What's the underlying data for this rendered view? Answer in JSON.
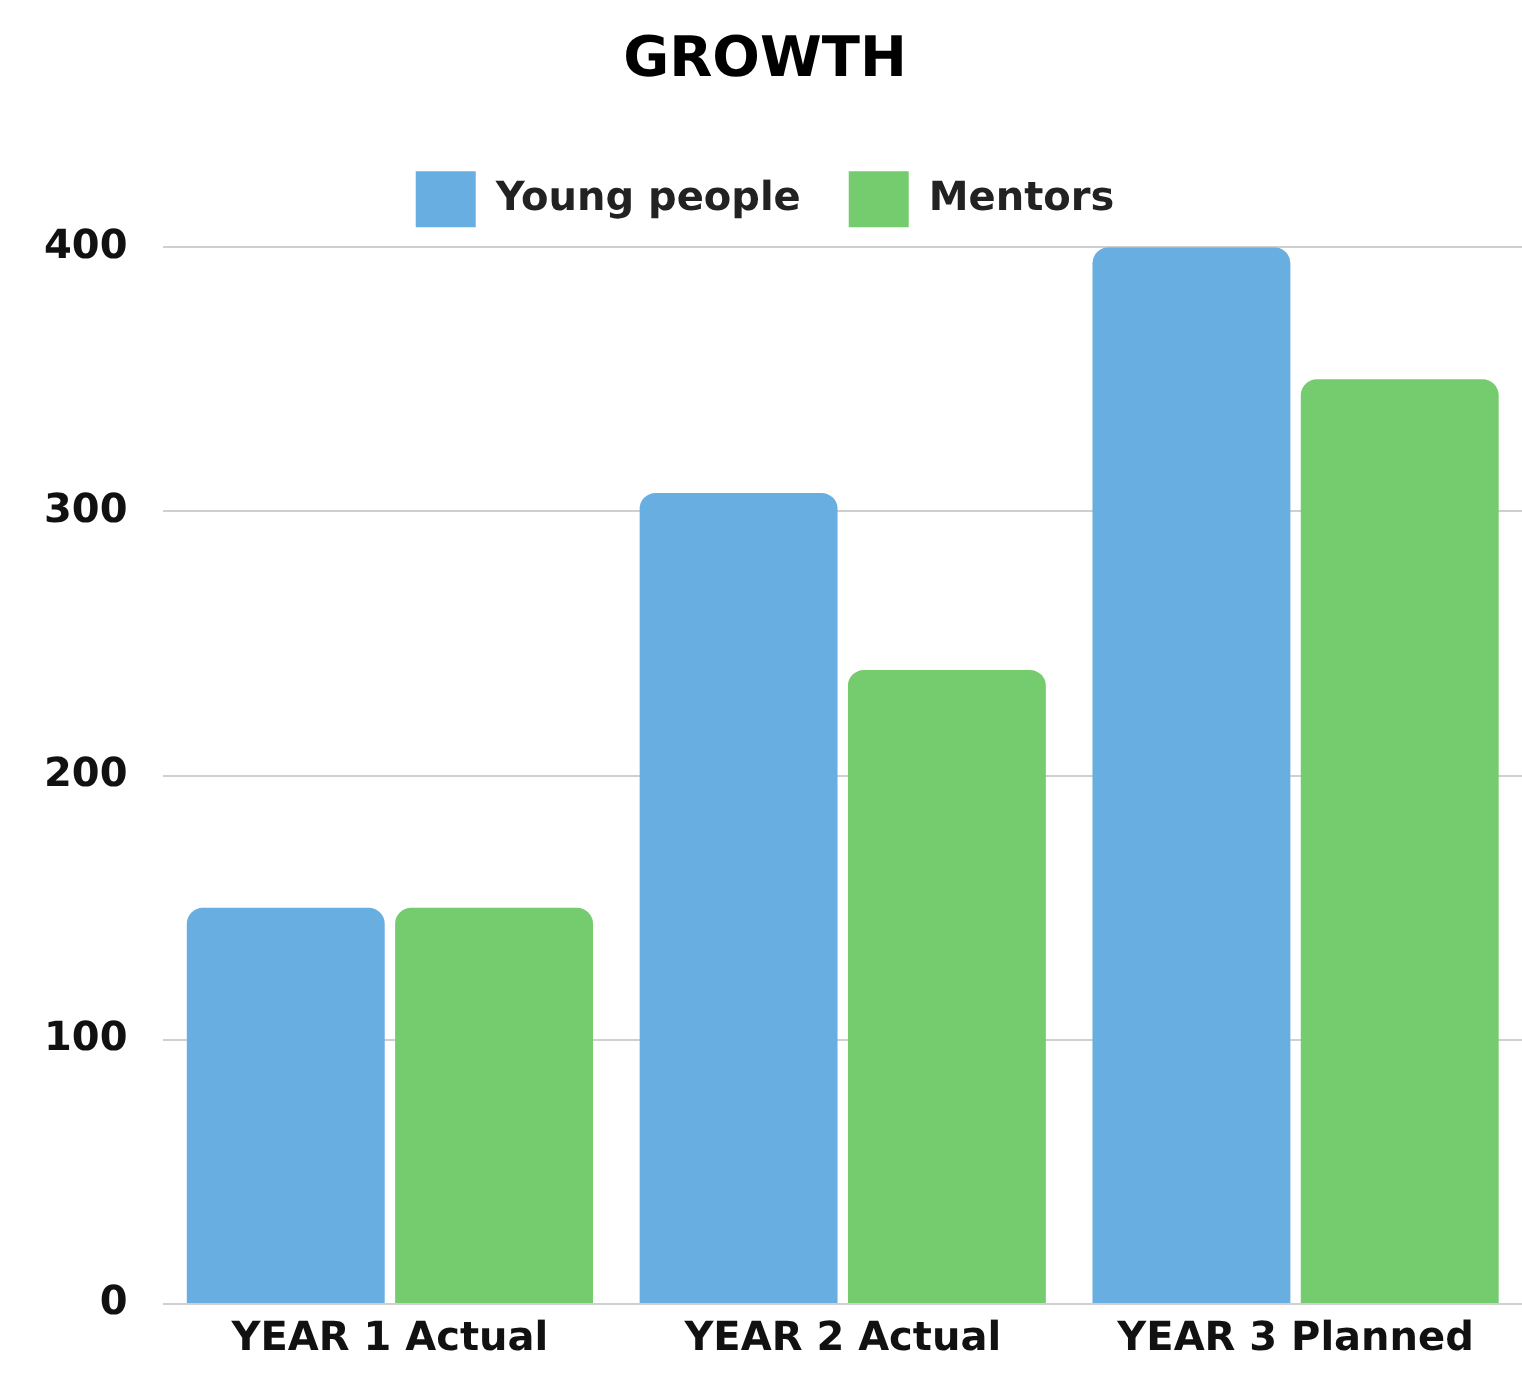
{
  "chart_data": {
    "type": "bar",
    "title": "GROWTH",
    "categories": [
      "YEAR 1 Actual",
      "YEAR 2 Actual",
      "YEAR 3 Planned"
    ],
    "series": [
      {
        "name": "Young people",
        "color": "#68aee0",
        "values": [
          150,
          307,
          400
        ]
      },
      {
        "name": "Mentors",
        "color": "#74cc6e",
        "values": [
          150,
          240,
          350
        ]
      }
    ],
    "ylim": [
      0,
      400
    ],
    "yticks": [
      0,
      100,
      200,
      300,
      400
    ],
    "grid": "y",
    "legend": "top"
  }
}
